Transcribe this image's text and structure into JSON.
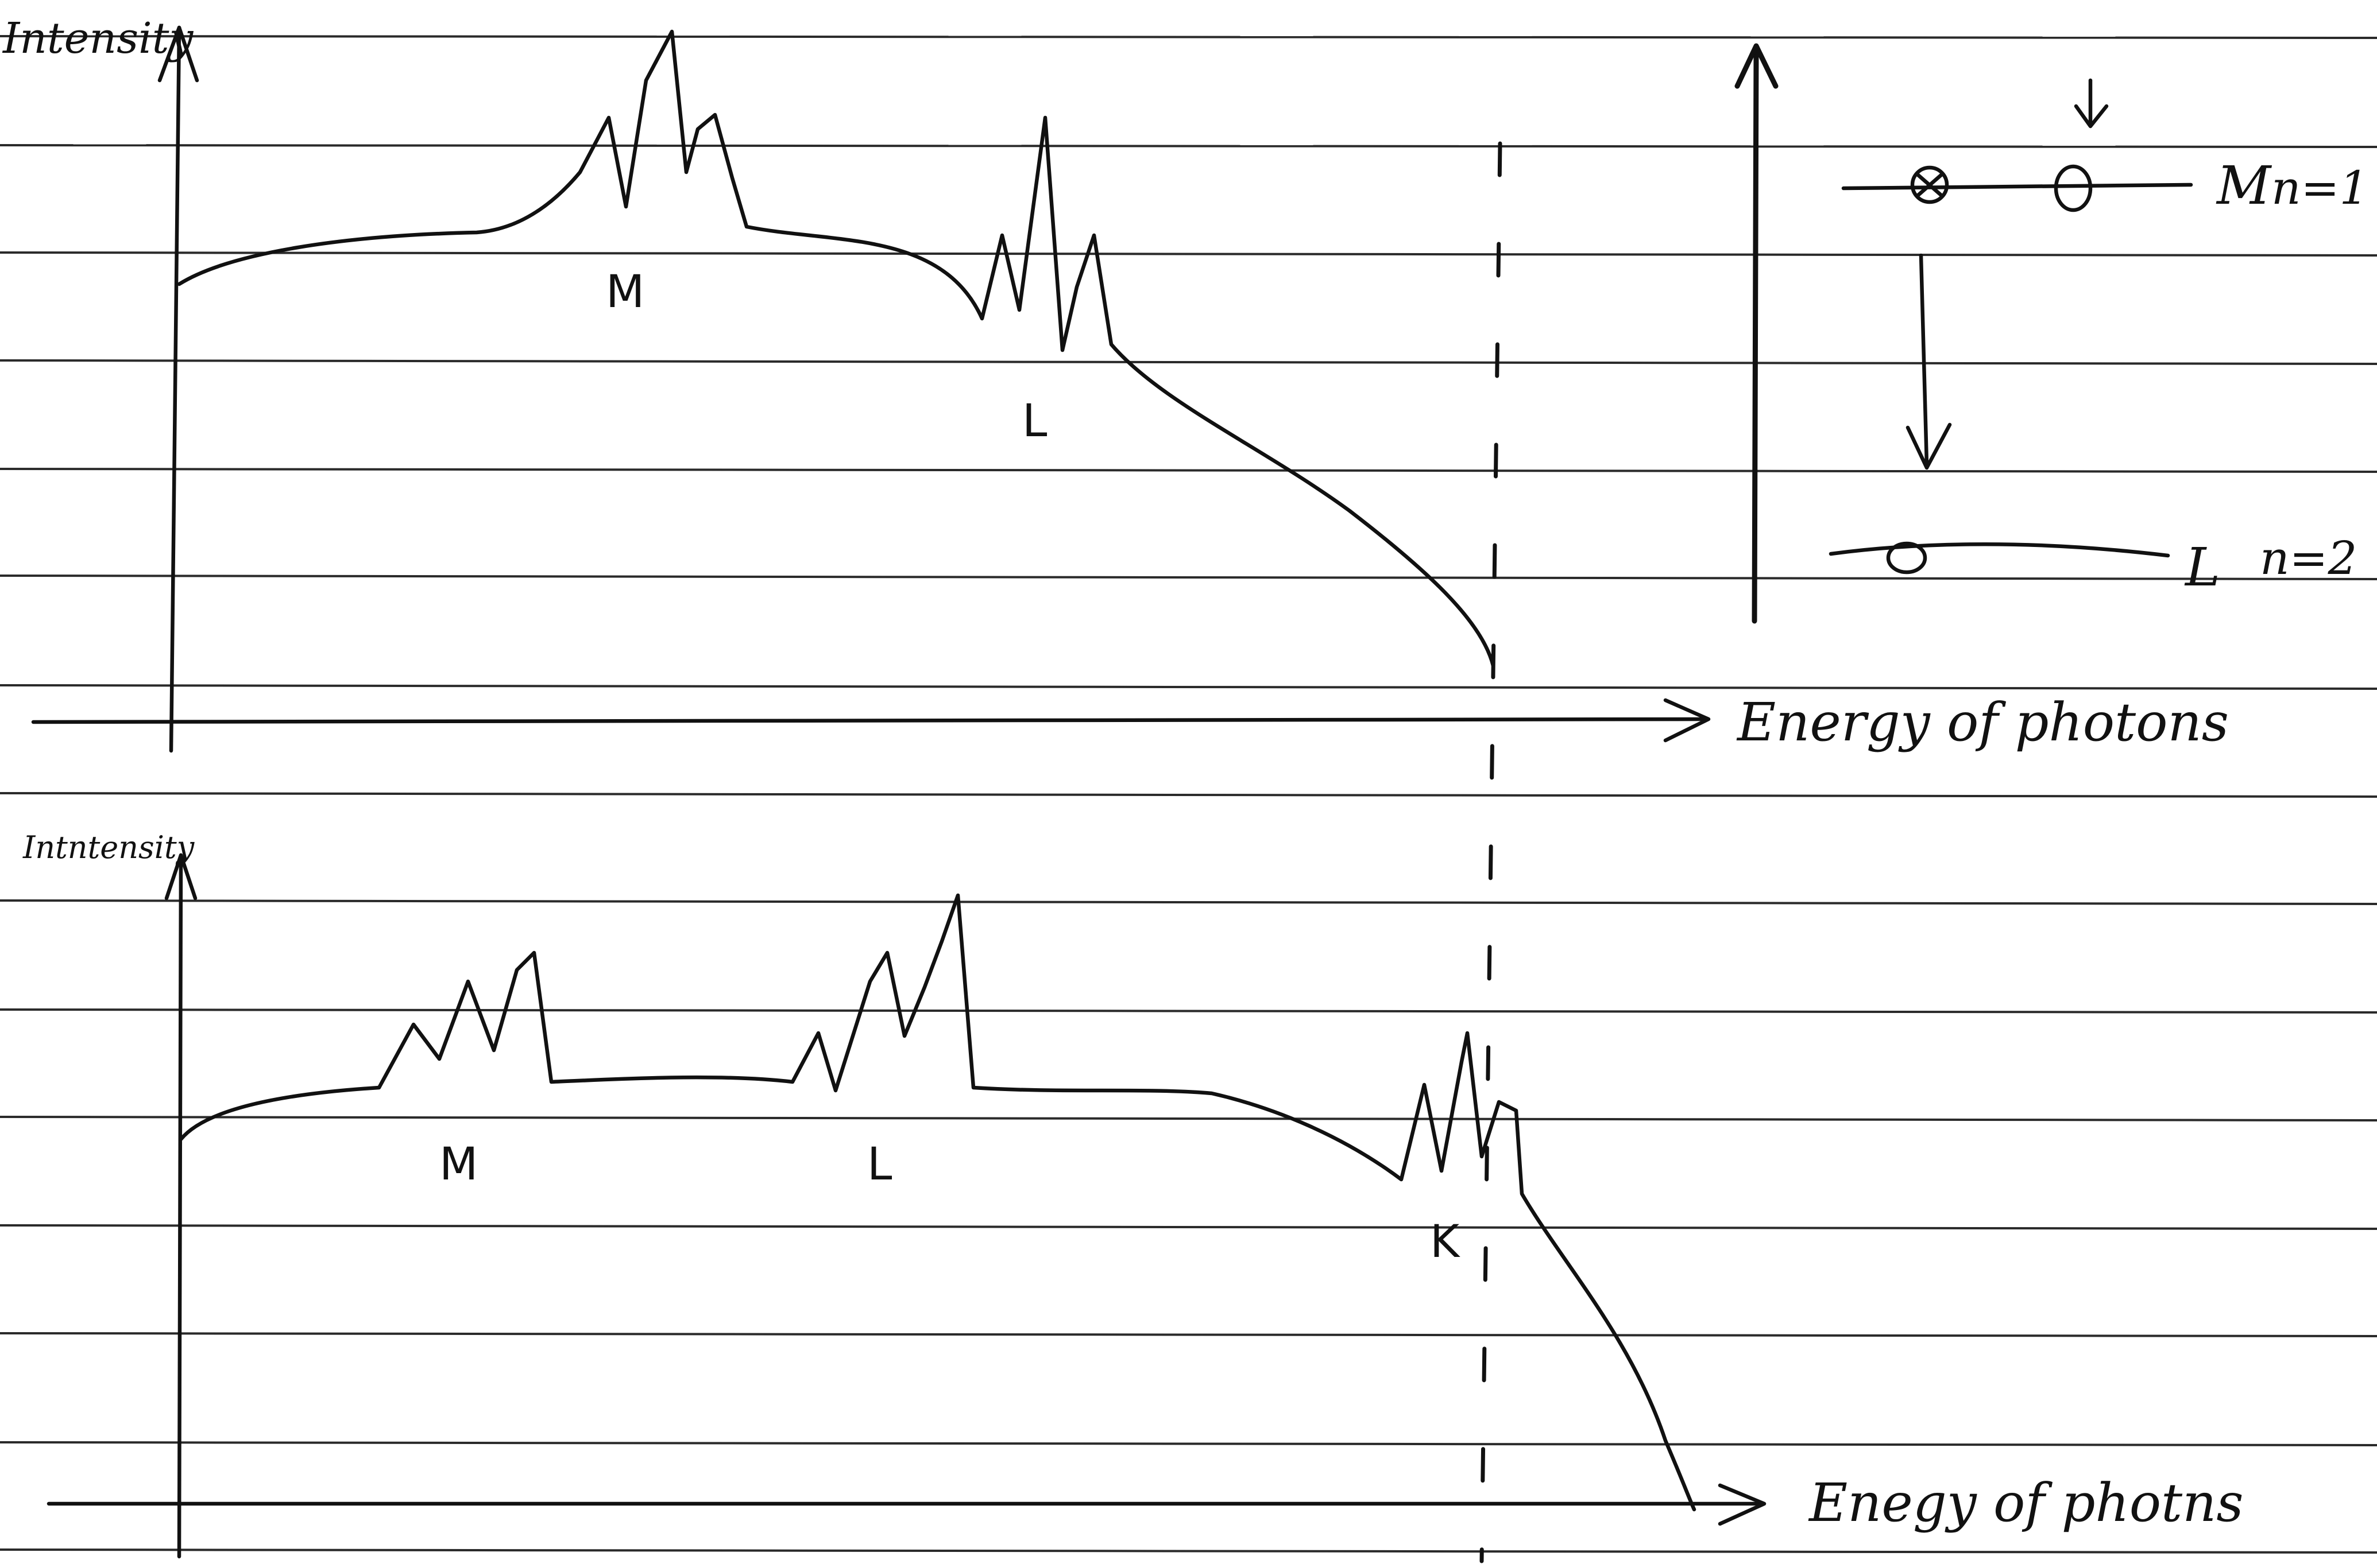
{
  "top_plot": {
    "y_label": "Intensity",
    "x_label": "Energy of photons",
    "peak_labels": [
      "M",
      "L"
    ]
  },
  "bottom_plot": {
    "y_label": "Intntensity",
    "x_label": "Enegy of photns",
    "peak_labels": [
      "M",
      "L",
      "K"
    ]
  },
  "energy_levels": {
    "upper_label": "M",
    "upper_n": "n=1",
    "lower_label": "L",
    "lower_n": "n=2"
  }
}
